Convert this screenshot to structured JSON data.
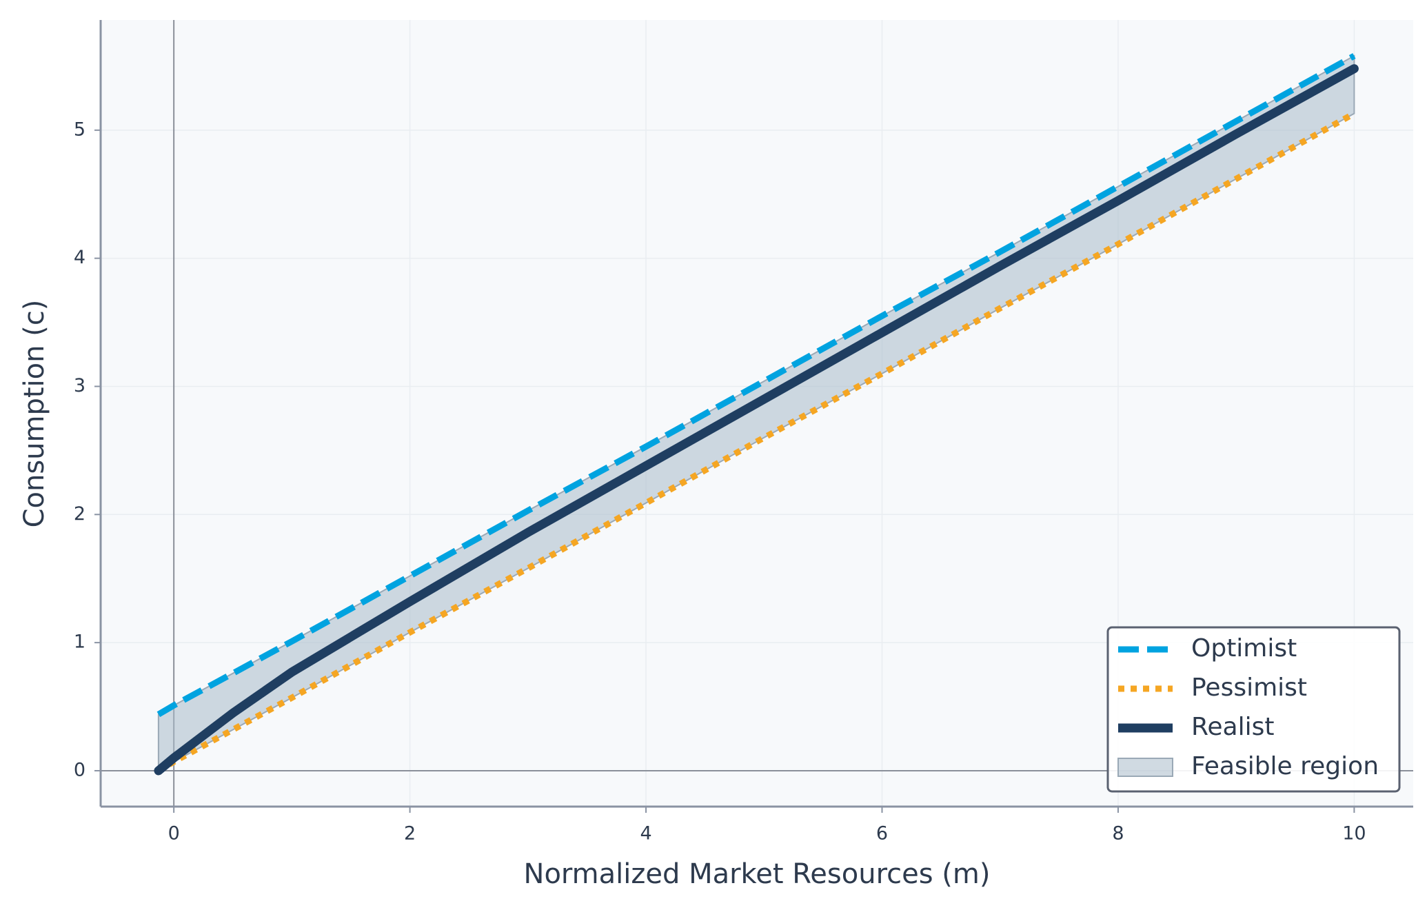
{
  "chart_data": {
    "type": "line",
    "xlabel": "Normalized Market Resources (m)",
    "ylabel": "Consumption (c)",
    "x": [
      -0.13,
      0,
      0.5,
      1,
      2,
      3,
      4,
      5,
      6,
      7,
      8,
      9,
      10
    ],
    "series": [
      {
        "name": "Optimist",
        "color": "#00a3e0",
        "style": "dashed",
        "values": [
          0.44,
          0.51,
          0.76,
          1.01,
          1.52,
          2.03,
          2.53,
          3.04,
          3.55,
          4.05,
          4.56,
          5.07,
          5.58
        ]
      },
      {
        "name": "Pessimist",
        "color": "#f5a623",
        "style": "dotted",
        "values": [
          0.0,
          0.07,
          0.32,
          0.57,
          1.08,
          1.58,
          2.09,
          2.6,
          3.1,
          3.61,
          4.11,
          4.62,
          5.13
        ]
      },
      {
        "name": "Realist",
        "color": "#1f3e61",
        "style": "solid",
        "values": [
          0.0,
          0.1,
          0.45,
          0.77,
          1.32,
          1.86,
          2.38,
          2.9,
          3.42,
          3.94,
          4.45,
          4.97,
          5.48
        ]
      }
    ],
    "band": {
      "name": "Feasible region",
      "color": "#a9bccb",
      "between": [
        "Pessimist",
        "Optimist"
      ]
    },
    "xlim": [
      -0.62,
      10.5
    ],
    "ylim": [
      -0.28,
      5.86
    ],
    "xticks": [
      0,
      2,
      4,
      6,
      8,
      10
    ],
    "yticks": [
      0,
      1,
      2,
      3,
      4,
      5
    ],
    "grid": true,
    "zero_lines": true,
    "legend": "lower right"
  }
}
